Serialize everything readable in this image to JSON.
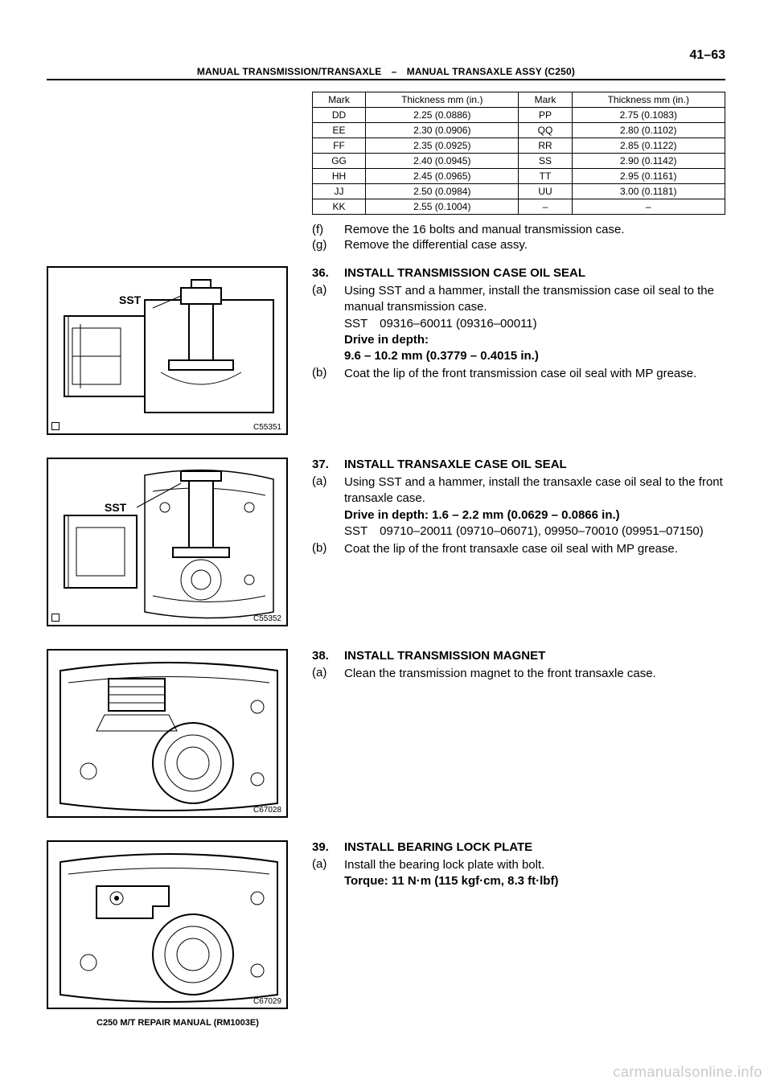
{
  "page_number": "41–63",
  "breadcrumb": "MANUAL TRANSMISSION/TRANSAXLE – MANUAL TRANSAXLE ASSY (C250)",
  "table": {
    "headers": [
      "Mark",
      "Thickness mm (in.)",
      "Mark",
      "Thickness mm (in.)"
    ],
    "rows": [
      [
        "DD",
        "2.25 (0.0886)",
        "PP",
        "2.75 (0.1083)"
      ],
      [
        "EE",
        "2.30 (0.0906)",
        "QQ",
        "2.80 (0.1102)"
      ],
      [
        "FF",
        "2.35 (0.0925)",
        "RR",
        "2.85 (0.1122)"
      ],
      [
        "GG",
        "2.40 (0.0945)",
        "SS",
        "2.90 (0.1142)"
      ],
      [
        "HH",
        "2.45 (0.0965)",
        "TT",
        "2.95 (0.1161)"
      ],
      [
        "JJ",
        "2.50 (0.0984)",
        "UU",
        "3.00 (0.1181)"
      ],
      [
        "KK",
        "2.55 (0.1004)",
        "–",
        "–"
      ]
    ]
  },
  "below_table_steps": [
    {
      "label": "(f)",
      "text": "Remove the 16 bolts and manual transmission case."
    },
    {
      "label": "(g)",
      "text": "Remove the differential case assy."
    }
  ],
  "sections": {
    "s36": {
      "num": "36.",
      "heading": "INSTALL TRANSMISSION CASE OIL SEAL",
      "fig_code": "C55351",
      "sst_label": "SST",
      "items": [
        {
          "label": "(a)",
          "lines": [
            "Using SST and a hammer, install the transmission case oil seal to the manual transmission case.",
            "SST 09316–60011  (09316–00011)",
            "Drive in depth:",
            "9.6 – 10.2 mm (0.3779 – 0.4015 in.)"
          ]
        },
        {
          "label": "(b)",
          "lines": [
            "Coat the lip of the front transmission case oil seal with MP grease."
          ]
        }
      ]
    },
    "s37": {
      "num": "37.",
      "heading": "INSTALL TRANSAXLE CASE OIL SEAL",
      "fig_code": "C55352",
      "sst_label": "SST",
      "items": [
        {
          "label": "(a)",
          "lines": [
            "Using SST and a hammer, install the transaxle case oil seal to the front transaxle case.",
            "Drive in depth: 1.6 – 2.2 mm (0.0629 – 0.0866 in.)",
            "SST 09710–20011 (09710–06071), 09950–70010 (09951–07150)"
          ]
        },
        {
          "label": "(b)",
          "lines": [
            "Coat the lip of the front transaxle case oil seal with MP grease."
          ]
        }
      ]
    },
    "s38": {
      "num": "38.",
      "heading": "INSTALL TRANSMISSION MAGNET",
      "fig_code": "C67028",
      "items": [
        {
          "label": "(a)",
          "lines": [
            "Clean the transmission magnet to the front transaxle case."
          ]
        }
      ]
    },
    "s39": {
      "num": "39.",
      "heading": "INSTALL BEARING LOCK PLATE",
      "fig_code": "C67029",
      "items": [
        {
          "label": "(a)",
          "lines": [
            "Install the bearing lock plate with bolt.",
            "Torque: 11 N·m (115 kgf·cm, 8.3 ft·lbf)"
          ]
        }
      ]
    }
  },
  "footer": "C250 M/T REPAIR MANUAL   (RM1003E)",
  "watermark": "carmanualsonline.info"
}
